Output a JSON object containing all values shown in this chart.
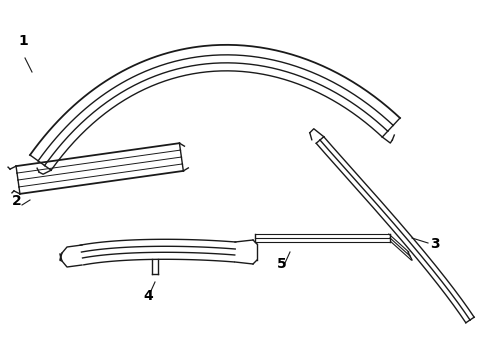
{
  "background_color": "#ffffff",
  "line_color": "#1a1a1a",
  "lw": 1.0,
  "label_fontsize": 10,
  "figsize": [
    4.9,
    3.6
  ],
  "dpi": 100
}
